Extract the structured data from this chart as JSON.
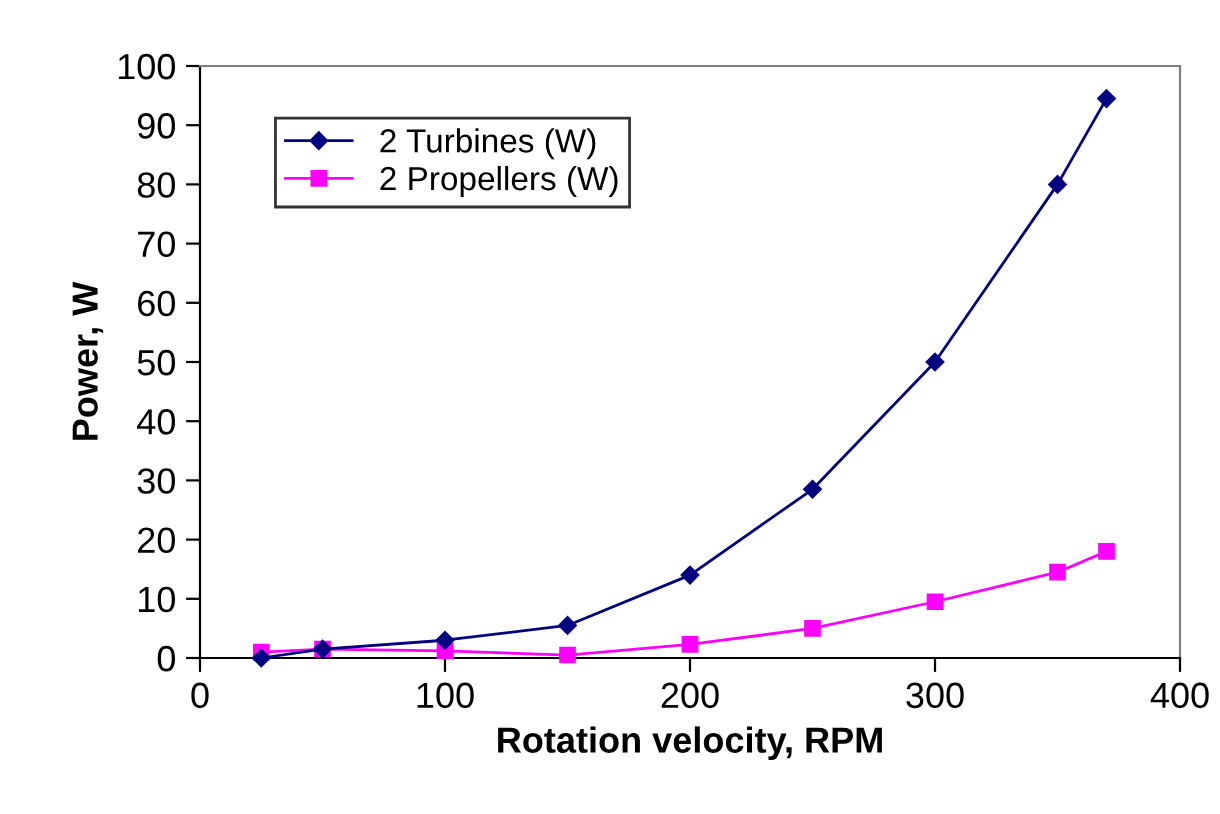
{
  "chart_data": {
    "type": "line",
    "xlabel": "Rotation velocity, RPM",
    "ylabel": "Power, W",
    "x": [
      25,
      50,
      100,
      150,
      200,
      250,
      300,
      350,
      370
    ],
    "series": [
      {
        "name": "2 Turbines (W)",
        "color": "#000080",
        "marker": "diamond",
        "values": [
          0,
          1.5,
          3,
          5.5,
          14,
          28.5,
          50,
          80,
          94.5
        ]
      },
      {
        "name": "2 Propellers (W)",
        "color": "#ff00ff",
        "marker": "square",
        "values": [
          1,
          1.5,
          1.2,
          0.5,
          2.3,
          5,
          9.5,
          14.5,
          18
        ]
      }
    ],
    "xlim": [
      0,
      400
    ],
    "xticks": [
      0,
      100,
      200,
      300,
      400
    ],
    "ylim": [
      0,
      100
    ],
    "yticks": [
      0,
      10,
      20,
      30,
      40,
      50,
      60,
      70,
      80,
      90,
      100
    ],
    "grid": false,
    "legend": "top left",
    "line_style": "solid"
  }
}
